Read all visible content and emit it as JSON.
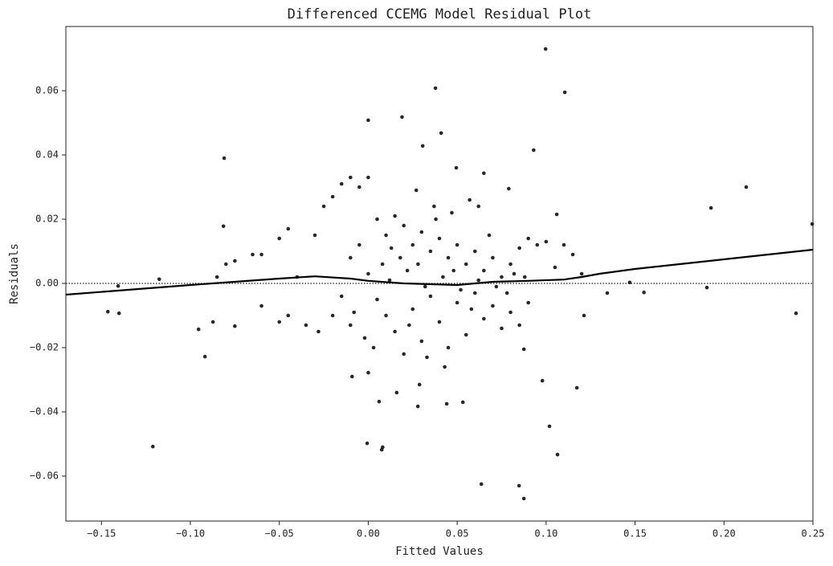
{
  "chart_data": {
    "type": "scatter",
    "title": "Differenced CCEMG Model Residual Plot",
    "xlabel": "Fitted Values",
    "ylabel": "Residuals",
    "xlim": [
      -0.17,
      0.25
    ],
    "ylim": [
      -0.074,
      0.08
    ],
    "xticks": [
      {
        "value": -0.15,
        "label": "−0.15"
      },
      {
        "value": -0.1,
        "label": "−0.10"
      },
      {
        "value": -0.05,
        "label": "−0.05"
      },
      {
        "value": 0,
        "label": "0.00"
      },
      {
        "value": 0.05,
        "label": "0.05"
      },
      {
        "value": 0.1,
        "label": "0.10"
      },
      {
        "value": 0.15,
        "label": "0.15"
      },
      {
        "value": 0.2,
        "label": "0.20"
      },
      {
        "value": 0.25,
        "label": "0.25"
      }
    ],
    "yticks": [
      {
        "value": -0.06,
        "label": "−0.06"
      },
      {
        "value": -0.04,
        "label": "−0.04"
      },
      {
        "value": -0.02,
        "label": "−0.02"
      },
      {
        "value": 0,
        "label": "0.00"
      },
      {
        "value": 0.02,
        "label": "0.02"
      },
      {
        "value": 0.04,
        "label": "0.04"
      },
      {
        "value": 0.06,
        "label": "0.06"
      }
    ],
    "color": "#111111",
    "x": [
      0.0997,
      0.0378,
      0.1105,
      0.0,
      0.019,
      0.041,
      0.0306,
      0.093,
      -0.081,
      0.0495,
      0.065,
      0.079,
      0.2125,
      0.1927,
      0.2496,
      -0.0814,
      0.2405,
      0.1904,
      -0.1464,
      -0.1401,
      -0.1406,
      -0.1175,
      -0.1211,
      -0.0918,
      -0.0954,
      -0.0873,
      -0.075,
      -0.0006,
      0.0081,
      0.0076,
      0.0279,
      0.0636,
      0.0848,
      0.0875,
      0.0441,
      0.0532,
      0.1019,
      0.1064,
      0.1173,
      0.0979,
      0.0875,
      0.1213,
      0.147,
      0.155,
      0.1344,
      0.106,
      -0.0091,
      0.0,
      0.0061,
      0.016,
      0.0288,
      0.005,
      0.01,
      0.015,
      0.02,
      0.025,
      0.03,
      0.035,
      0.04,
      0.045,
      0.05,
      0.055,
      0.06,
      0.065,
      0.07,
      0.075,
      0.08,
      0.085,
      0.09,
      0.005,
      0.01,
      0.015,
      0.02,
      0.025,
      0.03,
      0.035,
      0.04,
      0.045,
      0.05,
      0.055,
      0.06,
      0.065,
      0.07,
      0.075,
      0.08,
      0.085,
      0.09,
      0.0,
      0.012,
      0.022,
      0.032,
      0.042,
      0.052,
      0.062,
      0.072,
      0.082,
      -0.005,
      -0.01,
      -0.015,
      -0.008,
      -0.002,
      0.018,
      0.028,
      0.038,
      0.048,
      0.058,
      0.068,
      0.078,
      0.088,
      0.008,
      0.033,
      0.043,
      0.023,
      0.013,
      0.003,
      0.047,
      0.057,
      0.037,
      0.027,
      0.062,
      0.095,
      -0.06,
      -0.05,
      -0.045,
      -0.03,
      -0.025,
      -0.02,
      -0.015,
      -0.01,
      -0.005,
      0.0,
      -0.06,
      -0.05,
      -0.035,
      -0.028,
      -0.02,
      -0.01,
      -0.085,
      -0.08,
      -0.075,
      -0.065,
      -0.04,
      -0.045,
      0.1,
      0.105,
      0.11,
      0.115,
      0.12
    ],
    "values": [
      0.073,
      0.0608,
      0.0595,
      0.0508,
      0.0518,
      0.0468,
      0.0428,
      0.0415,
      0.039,
      0.036,
      0.0343,
      0.0295,
      0.03,
      0.0235,
      0.0185,
      0.0178,
      -0.0093,
      -0.0013,
      -0.0088,
      -0.0093,
      -0.0008,
      0.0013,
      -0.0508,
      -0.0228,
      -0.0143,
      -0.012,
      -0.0133,
      -0.0498,
      -0.051,
      -0.0518,
      -0.0383,
      -0.0625,
      -0.063,
      -0.067,
      -0.0375,
      -0.037,
      -0.0445,
      -0.0533,
      -0.0325,
      -0.0303,
      -0.0205,
      -0.01,
      0.0003,
      -0.0028,
      -0.003,
      0.0215,
      -0.029,
      -0.0278,
      -0.0368,
      -0.034,
      -0.0315,
      0.02,
      0.015,
      0.021,
      0.018,
      0.012,
      0.016,
      0.01,
      0.014,
      0.008,
      0.012,
      0.006,
      0.01,
      0.004,
      0.008,
      0.002,
      0.006,
      0.011,
      0.014,
      -0.005,
      -0.01,
      -0.015,
      -0.022,
      -0.008,
      -0.018,
      -0.004,
      -0.012,
      -0.02,
      -0.006,
      -0.016,
      -0.003,
      -0.011,
      -0.007,
      -0.014,
      -0.009,
      -0.013,
      -0.006,
      0.003,
      0.001,
      0.004,
      -0.001,
      0.002,
      -0.002,
      0.001,
      -0.001,
      0.003,
      0.012,
      0.008,
      -0.004,
      -0.009,
      -0.017,
      0.008,
      0.006,
      0.02,
      0.004,
      -0.008,
      0.015,
      -0.003,
      0.002,
      0.006,
      -0.023,
      -0.026,
      -0.013,
      0.011,
      -0.02,
      0.022,
      0.026,
      0.024,
      0.029,
      0.024,
      0.012,
      0.009,
      0.014,
      0.017,
      0.015,
      0.024,
      0.027,
      0.031,
      0.033,
      0.03,
      0.033,
      -0.007,
      -0.012,
      -0.013,
      -0.015,
      -0.01,
      -0.013,
      0.002,
      0.006,
      0.007,
      0.009,
      0.002,
      -0.01,
      0.013,
      0.005,
      0.012,
      0.009,
      0.003
    ],
    "lowess": {
      "color": "#000000",
      "x": [
        -0.17,
        -0.1,
        -0.05,
        -0.03,
        -0.01,
        0.0,
        0.02,
        0.05,
        0.07,
        0.09,
        0.11,
        0.12,
        0.13,
        0.15,
        0.2,
        0.25
      ],
      "values": [
        -0.0035,
        -0.0005,
        0.0015,
        0.0022,
        0.0015,
        0.0008,
        0.0,
        -0.0005,
        0.0005,
        0.0008,
        0.0012,
        0.002,
        0.003,
        0.0045,
        0.0075,
        0.0105
      ]
    },
    "reference_line": {
      "value": 0,
      "style": "dotted"
    }
  }
}
